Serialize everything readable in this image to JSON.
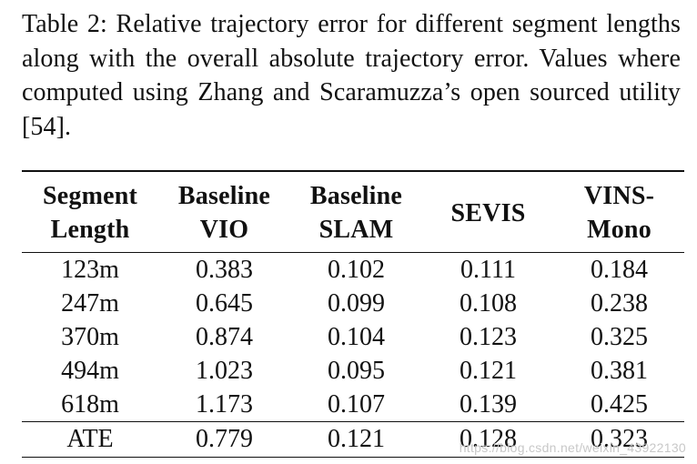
{
  "caption": "Table 2: Relative trajectory error for different segment lengths along with the overall absolute trajectory error. Values where computed using Zhang and Scaramuzza’s open sourced utility [54].",
  "table": {
    "header": {
      "segment": [
        "Segment",
        "Length"
      ],
      "baseline_vio": [
        "Baseline",
        "VIO"
      ],
      "baseline_slam": [
        "Baseline",
        "SLAM"
      ],
      "sevis": [
        "SEVIS"
      ],
      "vins_mono": [
        "VINS-",
        "Mono"
      ]
    },
    "rows": [
      [
        "123m",
        "0.383",
        "0.102",
        "0.111",
        "0.184"
      ],
      [
        "247m",
        "0.645",
        "0.099",
        "0.108",
        "0.238"
      ],
      [
        "370m",
        "0.874",
        "0.104",
        "0.123",
        "0.325"
      ],
      [
        "494m",
        "1.023",
        "0.095",
        "0.121",
        "0.381"
      ],
      [
        "618m",
        "1.173",
        "0.107",
        "0.139",
        "0.425"
      ]
    ],
    "ate": [
      "ATE",
      "0.779",
      "0.121",
      "0.128",
      "0.323"
    ]
  },
  "watermark": "https://blog.csdn.net/weixin_43922130"
}
